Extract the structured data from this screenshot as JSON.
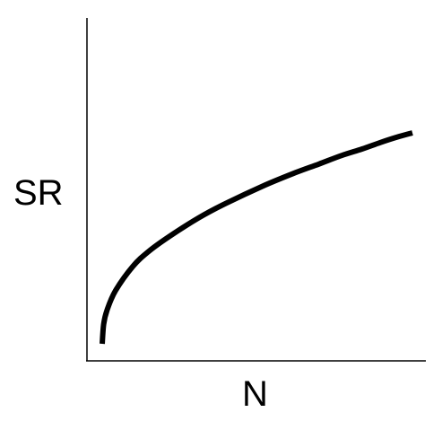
{
  "chart_data": {
    "type": "line",
    "title": "",
    "xlabel": "N",
    "ylabel": "SR",
    "x_ticks": [],
    "y_ticks": [],
    "grid": false,
    "legend": "none",
    "x": [
      1,
      1.5,
      2,
      3,
      5,
      7,
      10,
      15,
      20,
      30,
      40,
      50,
      60,
      70,
      80,
      90,
      100
    ],
    "series": [
      {
        "values": [
          0.0,
          0.183,
          0.312,
          0.493,
          0.72,
          0.86,
          1.0,
          1.17,
          1.29,
          1.46,
          1.58,
          1.67,
          1.75,
          1.81,
          1.87,
          1.92,
          1.96
        ],
        "color": "#000000"
      }
    ]
  }
}
